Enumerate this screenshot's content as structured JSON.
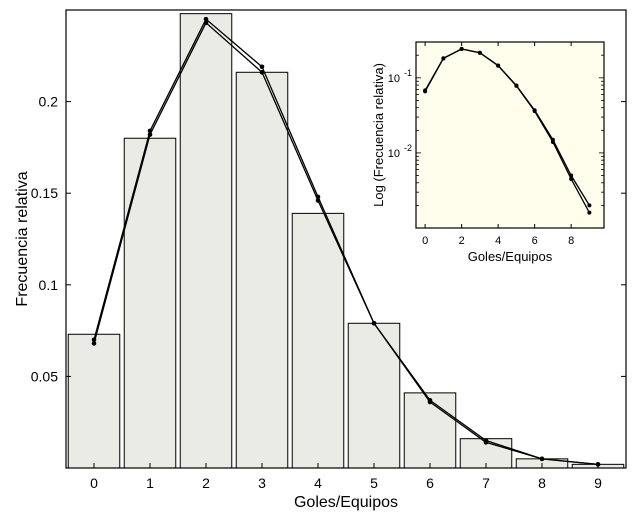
{
  "chart_data": [
    {
      "type": "bar",
      "xlabel": "Goles/Equipos",
      "ylabel": "Frecuencia relativa",
      "ylim": [
        0,
        0.25
      ],
      "categories": [
        "0",
        "1",
        "2",
        "3",
        "4",
        "5",
        "6",
        "7",
        "8",
        "9"
      ],
      "y_ticks": [
        "0.05",
        "0.1",
        "0.15",
        "0.2"
      ],
      "y_tick_values": [
        0.05,
        0.1,
        0.15,
        0.2
      ],
      "bar_color": "#ebebe6",
      "series": [
        {
          "values": [
            0.073,
            0.18,
            0.248,
            0.216,
            0.139,
            0.079,
            0.041,
            0.016,
            0.005,
            0.002
          ]
        }
      ],
      "lines": [
        {
          "x": [
            0,
            1,
            2,
            3,
            4,
            5,
            6,
            7,
            8,
            9
          ],
          "y": [
            0.07,
            0.184,
            0.245,
            0.219,
            0.148,
            0.079,
            0.036,
            0.014,
            0.005,
            0.002
          ]
        },
        {
          "x": [
            0,
            1,
            2,
            3,
            4,
            5,
            6,
            7,
            8,
            9
          ],
          "y": [
            0.068,
            0.182,
            0.243,
            0.216,
            0.146,
            0.079,
            0.037,
            0.015,
            0.005,
            0.002
          ]
        }
      ],
      "grid": false
    },
    {
      "type": "line",
      "xlabel": "Goles/Equipos",
      "ylabel": "Log (Frecuencia relativa)",
      "y_scale": "log",
      "ylim": [
        0.001,
        0.3
      ],
      "xlim": [
        -0.5,
        9.8
      ],
      "x_ticks": [
        "0",
        "2",
        "4",
        "6",
        "8"
      ],
      "x_tick_values": [
        0,
        2,
        4,
        6,
        8
      ],
      "y_ticks": [
        {
          "base": "10",
          "exp": "-1",
          "value": 0.1
        },
        {
          "base": "10",
          "exp": "-2",
          "value": 0.01
        }
      ],
      "background": "#fffdeb",
      "lines": [
        {
          "x": [
            0,
            1,
            2,
            3,
            4,
            5,
            6,
            7,
            8,
            9
          ],
          "y": [
            0.068,
            0.182,
            0.243,
            0.216,
            0.146,
            0.079,
            0.037,
            0.015,
            0.005,
            0.002
          ]
        },
        {
          "x": [
            0,
            1,
            2,
            3,
            4,
            5,
            6,
            7,
            8,
            9
          ],
          "y": [
            0.066,
            0.181,
            0.242,
            0.215,
            0.145,
            0.078,
            0.036,
            0.014,
            0.0045,
            0.0016
          ]
        }
      ],
      "grid": false
    }
  ]
}
